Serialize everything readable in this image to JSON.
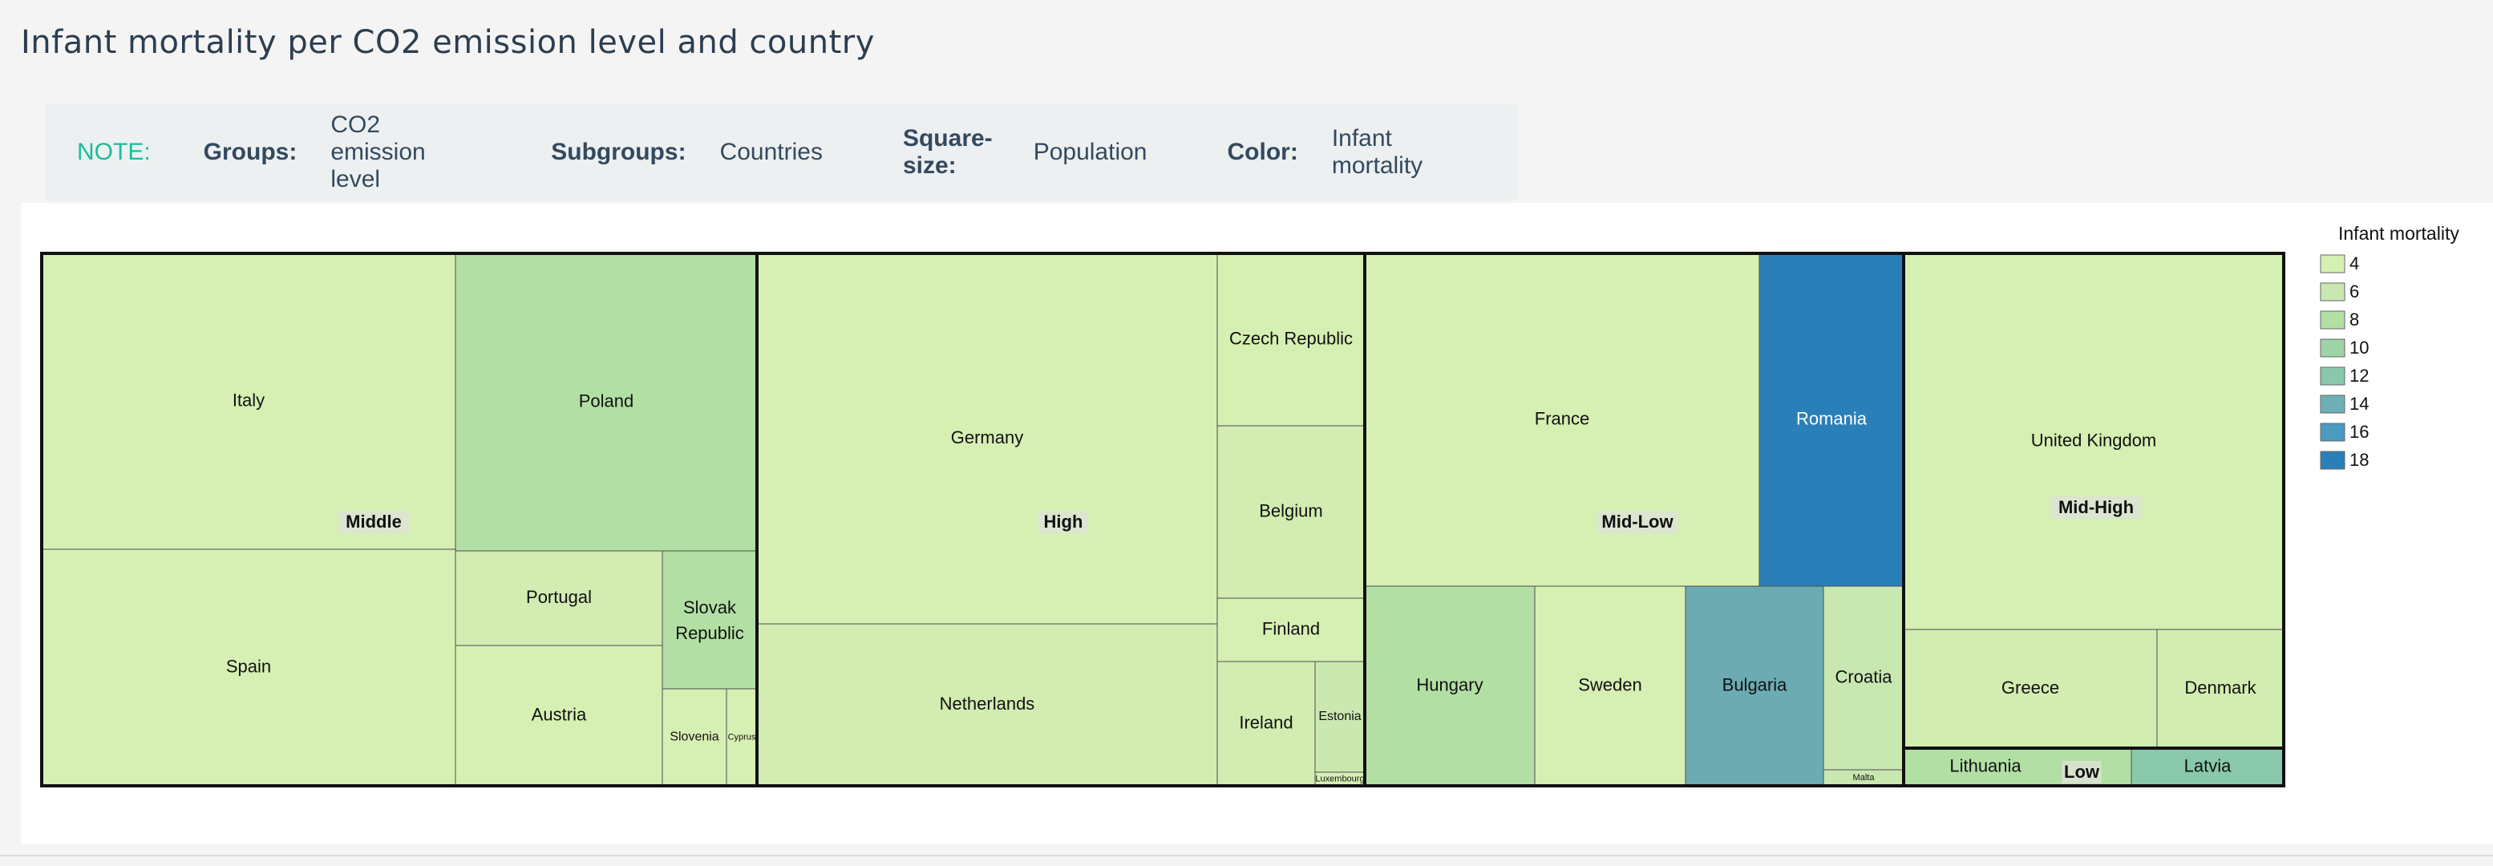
{
  "page": {
    "title": "Infant mortality per CO2 emission level and country"
  },
  "note": {
    "label": "NOTE:",
    "items": [
      {
        "key": "Groups:",
        "value": "CO2 emission level"
      },
      {
        "key": "Subgroups:",
        "value": "Countries"
      },
      {
        "key": "Square-size:",
        "value": "Population"
      },
      {
        "key": "Color:",
        "value": "Infant mortality"
      }
    ]
  },
  "colors": {
    "title": "#2c3e50",
    "note_accent": "#1abc9c",
    "scale": [
      "#d6efb3",
      "#c9e7b1",
      "#b2dfa4",
      "#9ed3a6",
      "#8ac8ab",
      "#6cb0b5",
      "#4a9bbf",
      "#2b7fb8"
    ]
  },
  "chart_data": {
    "type": "treemap",
    "legend": {
      "title": "Infant mortality",
      "values": [
        4,
        6,
        8,
        10,
        12,
        14,
        16,
        18
      ],
      "position": "top-right"
    },
    "groups": [
      {
        "name": "Middle",
        "children": [
          {
            "name": "Italy",
            "value": 60,
            "color": "#d6efb3"
          },
          {
            "name": "Spain",
            "value": 46,
            "color": "#d6efb3"
          },
          {
            "name": "Poland",
            "value": 38,
            "color": "#b2dfa4"
          },
          {
            "name": "Portugal",
            "value": 10,
            "color": "#d2ecb1"
          },
          {
            "name": "Austria",
            "value": 8.5,
            "color": "#d6efb3"
          },
          {
            "name": "Slovak Republic",
            "value": 5.4,
            "color": "#b2dfa4"
          },
          {
            "name": "Slovenia",
            "value": 2,
            "color": "#d6efb3"
          },
          {
            "name": "Cyprus",
            "value": 0.8,
            "color": "#d6efb3"
          }
        ]
      },
      {
        "name": "High",
        "children": [
          {
            "name": "Germany",
            "value": 82,
            "color": "#d6efb3"
          },
          {
            "name": "Netherlands",
            "value": 16.5,
            "color": "#d2ecb1"
          },
          {
            "name": "Czech Republic",
            "value": 10.5,
            "color": "#d6efb3"
          },
          {
            "name": "Belgium",
            "value": 10.5,
            "color": "#d2ecb1"
          },
          {
            "name": "Finland",
            "value": 5.3,
            "color": "#d6efb3"
          },
          {
            "name": "Ireland",
            "value": 4.5,
            "color": "#d2ecb1"
          },
          {
            "name": "Estonia",
            "value": 1.3,
            "color": "#cbe8b0"
          },
          {
            "name": "Luxembourg",
            "value": 0.5,
            "color": "#d6efb3"
          }
        ]
      },
      {
        "name": "Mid-Low",
        "children": [
          {
            "name": "France",
            "value": 64,
            "color": "#d6efb3"
          },
          {
            "name": "Romania",
            "value": 21.5,
            "color": "#2b7fb8"
          },
          {
            "name": "Hungary",
            "value": 10,
            "color": "#b2dfa4"
          },
          {
            "name": "Sweden",
            "value": 9.3,
            "color": "#d6efb3"
          },
          {
            "name": "Bulgaria",
            "value": 7.4,
            "color": "#6cabb2"
          },
          {
            "name": "Croatia",
            "value": 4.4,
            "color": "#c9e7b1"
          },
          {
            "name": "Malta",
            "value": 0.4,
            "color": "#c9e7b1"
          }
        ]
      },
      {
        "name": "Mid-High",
        "children": [
          {
            "name": "United Kingdom",
            "value": 62,
            "color": "#d6efb3"
          },
          {
            "name": "Greece",
            "value": 11,
            "color": "#d2ecb1"
          },
          {
            "name": "Denmark",
            "value": 5.5,
            "color": "#d2ecb1"
          }
        ]
      },
      {
        "name": "Low",
        "children": [
          {
            "name": "Lithuania",
            "value": 3,
            "color": "#b2dfa4"
          },
          {
            "name": "Latvia",
            "value": 2,
            "color": "#8ac8ab"
          }
        ]
      }
    ]
  }
}
